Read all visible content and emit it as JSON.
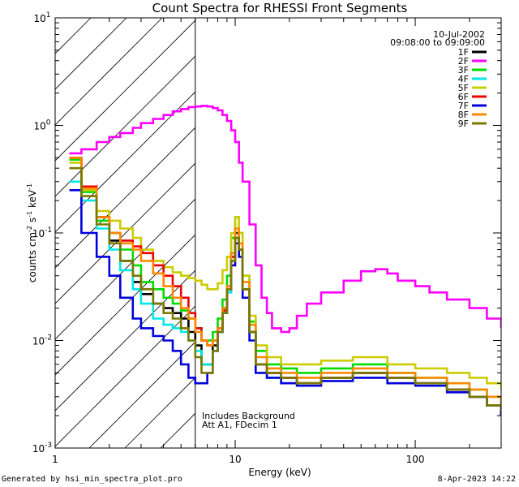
{
  "chart_data": {
    "type": "line",
    "title": "Count Spectra for RHESSI Front Segments",
    "xlabel": "Energy (keV)",
    "ylabel_parts": [
      "counts cm",
      "-2",
      " s",
      "-1",
      " keV",
      "-1"
    ],
    "x_scale": "log",
    "y_scale": "log",
    "xlim": [
      1,
      300
    ],
    "ylim": [
      0.001,
      10
    ],
    "x_ticks": [
      {
        "v": 1,
        "label": "1"
      },
      {
        "v": 10,
        "label": "10"
      },
      {
        "v": 100,
        "label": "100"
      }
    ],
    "y_ticks": [
      {
        "v": 10,
        "base": "10",
        "exp": "1"
      },
      {
        "v": 1,
        "base": "10",
        "exp": "0"
      },
      {
        "v": 0.1,
        "base": "10",
        "exp": "-1"
      },
      {
        "v": 0.01,
        "base": "10",
        "exp": "-2"
      },
      {
        "v": 0.001,
        "base": "10",
        "exp": "-3"
      }
    ],
    "attenuator_edge_keV": 6,
    "date": "10-Jul-2002",
    "time_range": "09:08:00 to 09:09:00",
    "annotations": [
      "Includes Background",
      "Att A1, FDecim 1"
    ],
    "series": [
      {
        "name": "1F",
        "color": "#000000",
        "x": [
          1.2,
          1.4,
          1.7,
          2.0,
          2.3,
          2.7,
          3.0,
          3.5,
          4.0,
          4.5,
          5.0,
          5.5,
          6.0,
          6.5,
          7.0,
          7.5,
          8.0,
          8.5,
          9.0,
          9.5,
          10.0,
          10.5,
          11.0,
          12.0,
          13.0,
          15.0,
          18.0,
          22.0,
          30.0,
          45.0,
          70.0,
          100.0,
          150.0,
          200.0,
          250.0,
          300.0
        ],
        "y": [
          0.5,
          0.25,
          0.14,
          0.085,
          0.055,
          0.035,
          0.027,
          0.022,
          0.02,
          0.018,
          0.016,
          0.012,
          0.009,
          0.006,
          0.006,
          0.009,
          0.013,
          0.02,
          0.03,
          0.06,
          0.1,
          0.08,
          0.03,
          0.012,
          0.006,
          0.005,
          0.0045,
          0.004,
          0.0045,
          0.005,
          0.0045,
          0.004,
          0.0035,
          0.003,
          0.0025,
          0.002
        ]
      },
      {
        "name": "2F",
        "color": "#ff00ff",
        "x": [
          1.2,
          1.4,
          1.7,
          2.0,
          2.3,
          2.7,
          3.0,
          3.5,
          4.0,
          4.5,
          5.0,
          5.5,
          6.0,
          6.5,
          7.0,
          7.5,
          8.0,
          8.5,
          9.0,
          9.5,
          10.0,
          10.5,
          11.0,
          12.0,
          13.0,
          14.0,
          15.0,
          16.0,
          18.0,
          20.0,
          22.0,
          25.0,
          30.0,
          40.0,
          50.0,
          60.0,
          70.0,
          80.0,
          100.0,
          120.0,
          150.0,
          200.0,
          250.0,
          300.0
        ],
        "y": [
          0.55,
          0.6,
          0.7,
          0.78,
          0.85,
          0.95,
          1.05,
          1.15,
          1.25,
          1.35,
          1.42,
          1.48,
          1.5,
          1.52,
          1.5,
          1.45,
          1.38,
          1.25,
          1.1,
          0.9,
          0.7,
          0.45,
          0.3,
          0.12,
          0.05,
          0.025,
          0.018,
          0.013,
          0.012,
          0.013,
          0.017,
          0.022,
          0.028,
          0.036,
          0.044,
          0.046,
          0.042,
          0.036,
          0.032,
          0.028,
          0.024,
          0.02,
          0.016,
          0.013
        ]
      },
      {
        "name": "3F",
        "color": "#00dd00",
        "x": [
          1.2,
          1.4,
          1.7,
          2.0,
          2.3,
          2.7,
          3.0,
          3.5,
          4.0,
          4.5,
          5.0,
          5.5,
          6.0,
          6.5,
          7.0,
          7.5,
          8.0,
          8.5,
          9.0,
          9.5,
          10.0,
          10.5,
          11.0,
          12.0,
          13.0,
          15.0,
          18.0,
          22.0,
          30.0,
          45.0,
          70.0,
          100.0,
          150.0,
          200.0,
          250.0,
          300.0
        ],
        "y": [
          0.48,
          0.24,
          0.13,
          0.1,
          0.07,
          0.05,
          0.035,
          0.03,
          0.025,
          0.022,
          0.019,
          0.016,
          0.013,
          0.01,
          0.01,
          0.012,
          0.016,
          0.024,
          0.04,
          0.09,
          0.14,
          0.1,
          0.04,
          0.015,
          0.008,
          0.006,
          0.0055,
          0.005,
          0.0055,
          0.006,
          0.005,
          0.0045,
          0.004,
          0.0035,
          0.003,
          0.0025
        ]
      },
      {
        "name": "4F",
        "color": "#00e8e8",
        "x": [
          1.2,
          1.4,
          1.7,
          2.0,
          2.3,
          2.7,
          3.0,
          3.5,
          4.0,
          4.5,
          5.0,
          5.5,
          6.0,
          6.5,
          7.0,
          7.5,
          8.0,
          8.5,
          9.0,
          9.5,
          10.0,
          10.5,
          11.0,
          12.0,
          13.0,
          15.0,
          18.0,
          22.0,
          30.0,
          45.0,
          70.0,
          100.0,
          150.0,
          200.0,
          250.0,
          300.0
        ],
        "y": [
          0.3,
          0.2,
          0.11,
          0.07,
          0.045,
          0.03,
          0.022,
          0.016,
          0.014,
          0.013,
          0.012,
          0.01,
          0.008,
          0.006,
          0.006,
          0.008,
          0.012,
          0.018,
          0.028,
          0.055,
          0.09,
          0.07,
          0.03,
          0.012,
          0.006,
          0.0045,
          0.004,
          0.004,
          0.0045,
          0.005,
          0.0045,
          0.004,
          0.0035,
          0.003,
          0.0025,
          0.0022
        ]
      },
      {
        "name": "5F",
        "color": "#cccc00",
        "x": [
          1.2,
          1.4,
          1.7,
          2.0,
          2.3,
          2.7,
          3.0,
          3.5,
          4.0,
          4.5,
          5.0,
          5.5,
          6.0,
          6.5,
          7.0,
          7.5,
          8.0,
          8.5,
          9.0,
          9.5,
          10.0,
          10.5,
          11.0,
          12.0,
          13.0,
          15.0,
          18.0,
          22.0,
          30.0,
          45.0,
          70.0,
          100.0,
          150.0,
          200.0,
          250.0,
          300.0
        ],
        "y": [
          0.45,
          0.25,
          0.16,
          0.13,
          0.11,
          0.09,
          0.07,
          0.055,
          0.048,
          0.043,
          0.04,
          0.038,
          0.036,
          0.033,
          0.03,
          0.03,
          0.034,
          0.045,
          0.06,
          0.1,
          0.14,
          0.1,
          0.04,
          0.017,
          0.009,
          0.007,
          0.006,
          0.006,
          0.0065,
          0.007,
          0.006,
          0.0055,
          0.005,
          0.0045,
          0.004,
          0.0035
        ]
      },
      {
        "name": "6F",
        "color": "#ee0000",
        "x": [
          1.2,
          1.4,
          1.7,
          2.0,
          2.3,
          2.7,
          3.0,
          3.5,
          4.0,
          4.5,
          5.0,
          5.5,
          6.0,
          6.5,
          7.0,
          7.5,
          8.0,
          8.5,
          9.0,
          9.5,
          10.0,
          10.5,
          11.0,
          12.0,
          13.0,
          15.0,
          18.0,
          22.0,
          30.0,
          45.0,
          70.0,
          100.0,
          150.0,
          200.0,
          250.0,
          300.0
        ],
        "y": [
          0.5,
          0.27,
          0.14,
          0.1,
          0.085,
          0.075,
          0.065,
          0.05,
          0.04,
          0.032,
          0.025,
          0.018,
          0.013,
          0.01,
          0.009,
          0.01,
          0.013,
          0.019,
          0.03,
          0.06,
          0.09,
          0.07,
          0.03,
          0.012,
          0.006,
          0.005,
          0.0045,
          0.004,
          0.0045,
          0.005,
          0.0045,
          0.004,
          0.0035,
          0.003,
          0.0025,
          0.0022
        ]
      },
      {
        "name": "7F",
        "color": "#0000dd",
        "x": [
          1.2,
          1.4,
          1.7,
          2.0,
          2.3,
          2.7,
          3.0,
          3.5,
          4.0,
          4.5,
          5.0,
          5.5,
          6.0,
          6.5,
          7.0,
          7.5,
          8.0,
          8.5,
          9.0,
          9.5,
          10.0,
          10.5,
          11.0,
          12.0,
          13.0,
          15.0,
          18.0,
          22.0,
          30.0,
          45.0,
          70.0,
          100.0,
          150.0,
          200.0,
          250.0,
          300.0
        ],
        "y": [
          0.25,
          0.1,
          0.06,
          0.04,
          0.025,
          0.016,
          0.013,
          0.011,
          0.01,
          0.008,
          0.006,
          0.0045,
          0.004,
          0.004,
          0.005,
          0.008,
          0.012,
          0.018,
          0.03,
          0.05,
          0.08,
          0.06,
          0.025,
          0.01,
          0.005,
          0.0045,
          0.004,
          0.0038,
          0.0042,
          0.0045,
          0.004,
          0.0038,
          0.0033,
          0.003,
          0.0025,
          0.002
        ]
      },
      {
        "name": "8F",
        "color": "#ff8800",
        "x": [
          1.2,
          1.4,
          1.7,
          2.0,
          2.3,
          2.7,
          3.0,
          3.5,
          4.0,
          4.5,
          5.0,
          5.5,
          6.0,
          6.5,
          7.0,
          7.5,
          8.0,
          8.5,
          9.0,
          9.5,
          10.0,
          10.5,
          11.0,
          12.0,
          13.0,
          15.0,
          18.0,
          22.0,
          30.0,
          45.0,
          70.0,
          100.0,
          150.0,
          200.0,
          250.0,
          300.0
        ],
        "y": [
          0.5,
          0.26,
          0.14,
          0.1,
          0.08,
          0.07,
          0.055,
          0.042,
          0.032,
          0.025,
          0.02,
          0.016,
          0.012,
          0.01,
          0.009,
          0.01,
          0.013,
          0.02,
          0.032,
          0.065,
          0.11,
          0.08,
          0.035,
          0.014,
          0.007,
          0.0055,
          0.005,
          0.0045,
          0.005,
          0.0055,
          0.005,
          0.0045,
          0.004,
          0.0035,
          0.003,
          0.0025
        ]
      },
      {
        "name": "9F",
        "color": "#7a7a00",
        "x": [
          1.2,
          1.4,
          1.7,
          2.0,
          2.3,
          2.7,
          3.0,
          3.5,
          4.0,
          4.5,
          5.0,
          5.5,
          6.0,
          6.5,
          7.0,
          7.5,
          8.0,
          8.5,
          9.0,
          9.5,
          10.0,
          10.5,
          11.0,
          12.0,
          13.0,
          15.0,
          18.0,
          22.0,
          30.0,
          45.0,
          70.0,
          100.0,
          150.0,
          200.0,
          250.0,
          300.0
        ],
        "y": [
          0.4,
          0.22,
          0.12,
          0.08,
          0.055,
          0.04,
          0.03,
          0.022,
          0.018,
          0.016,
          0.013,
          0.01,
          0.007,
          0.005,
          0.005,
          0.008,
          0.012,
          0.018,
          0.03,
          0.055,
          0.09,
          0.07,
          0.03,
          0.012,
          0.006,
          0.005,
          0.0045,
          0.004,
          0.0045,
          0.005,
          0.0045,
          0.004,
          0.0035,
          0.003,
          0.0025,
          0.0022
        ]
      }
    ]
  },
  "footer": {
    "left": "Generated by hsi_min_spectra_plot.pro",
    "right": "8-Apr-2023 14:22"
  }
}
